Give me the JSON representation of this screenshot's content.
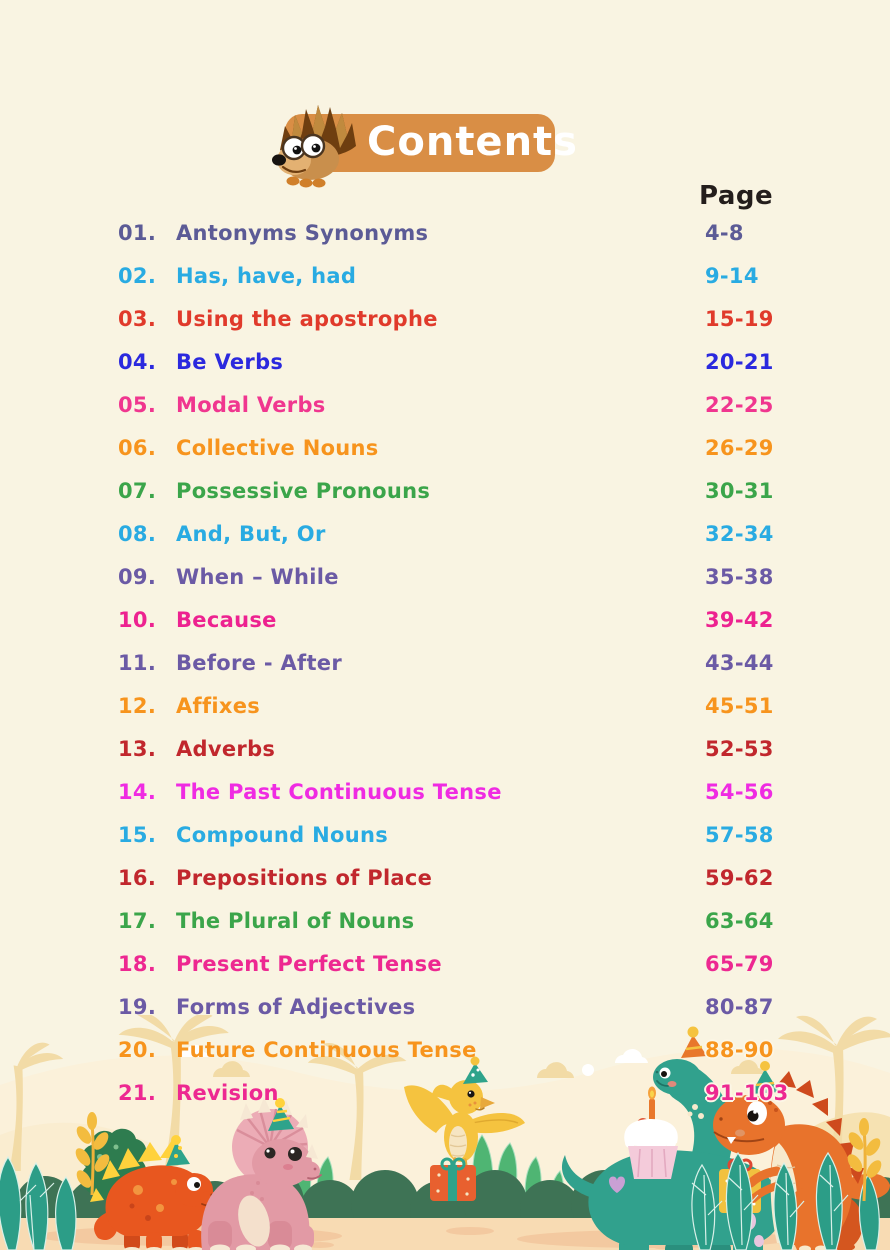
{
  "header": {
    "title": "Contents",
    "banner_color": "#D98E45",
    "mascot": "hedgehog-mascot",
    "page_column_header": "Page"
  },
  "toc": {
    "items": [
      {
        "num": "01.",
        "title": "Antonyms Synonyms",
        "pages": "4-8",
        "color": "#5C5B96"
      },
      {
        "num": "02.",
        "title": "Has, have, had",
        "pages": "9-14",
        "color": "#29ABE2"
      },
      {
        "num": "03.",
        "title": "Using the apostrophe",
        "pages": "15-19",
        "color": "#E03A2B"
      },
      {
        "num": "04.",
        "title": "Be Verbs",
        "pages": "20-21",
        "color": "#2B29DE"
      },
      {
        "num": "05.",
        "title": "Modal Verbs",
        "pages": "22-25",
        "color": "#F0368F"
      },
      {
        "num": "06.",
        "title": "Collective Nouns",
        "pages": "26-29",
        "color": "#F7941D"
      },
      {
        "num": "07.",
        "title": "Possessive Pronouns",
        "pages": "30-31",
        "color": "#3BA54A"
      },
      {
        "num": "08.",
        "title": "And, But, Or",
        "pages": "32-34",
        "color": "#29ABE2"
      },
      {
        "num": "09.",
        "title": "When – While",
        "pages": "35-38",
        "color": "#6B5AA5"
      },
      {
        "num": "10.",
        "title": "Because",
        "pages": "39-42",
        "color": "#ED2290"
      },
      {
        "num": "11.",
        "title": "Before - After",
        "pages": "43-44",
        "color": "#6B5AA5"
      },
      {
        "num": "12.",
        "title": "Affixes",
        "pages": "45-51",
        "color": "#F7941D"
      },
      {
        "num": "13.",
        "title": "Adverbs",
        "pages": "52-53",
        "color": "#C1272D"
      },
      {
        "num": "14.",
        "title": "The Past Continuous Tense",
        "pages": "54-56",
        "color": "#EF2BE2"
      },
      {
        "num": "15.",
        "title": "Compound Nouns",
        "pages": "57-58",
        "color": "#29ABE2"
      },
      {
        "num": "16.",
        "title": "Prepositions of Place",
        "pages": "59-62",
        "color": "#C1272D"
      },
      {
        "num": "17.",
        "title": "The Plural of Nouns",
        "pages": "63-64",
        "color": "#3BA54A"
      },
      {
        "num": "18.",
        "title": "Present Perfect Tense",
        "pages": "65-79",
        "color": "#ED2891"
      },
      {
        "num": "19.",
        "title": "Forms of Adjectives",
        "pages": "80-87",
        "color": "#6B5AA5"
      },
      {
        "num": "20.",
        "title": "Future Continuous Tense",
        "pages": "88-90",
        "color": "#F7941D"
      },
      {
        "num": "21.",
        "title": "Revision",
        "pages": "91-103",
        "color": "#ED2891"
      }
    ]
  },
  "footer_illustration": {
    "scene": "dinosaur-birthday-party",
    "characters": [
      "stegosaurus",
      "triceratops",
      "pterodactyl",
      "brontosaurus",
      "tyrannosaurus"
    ],
    "colors": {
      "ground": "#F8DBB3",
      "bush": "#3E7355",
      "teal_leaf": "#2C9D87",
      "light_leaf": "#4FB573",
      "palm_silhouette": "#F2DBA6",
      "stegosaurus": "#E8571F",
      "triceratops": "#E29AA5",
      "pterodactyl": "#F5C33F",
      "brontosaurus": "#31A18D",
      "tyrannosaurus": "#E8732C"
    }
  }
}
